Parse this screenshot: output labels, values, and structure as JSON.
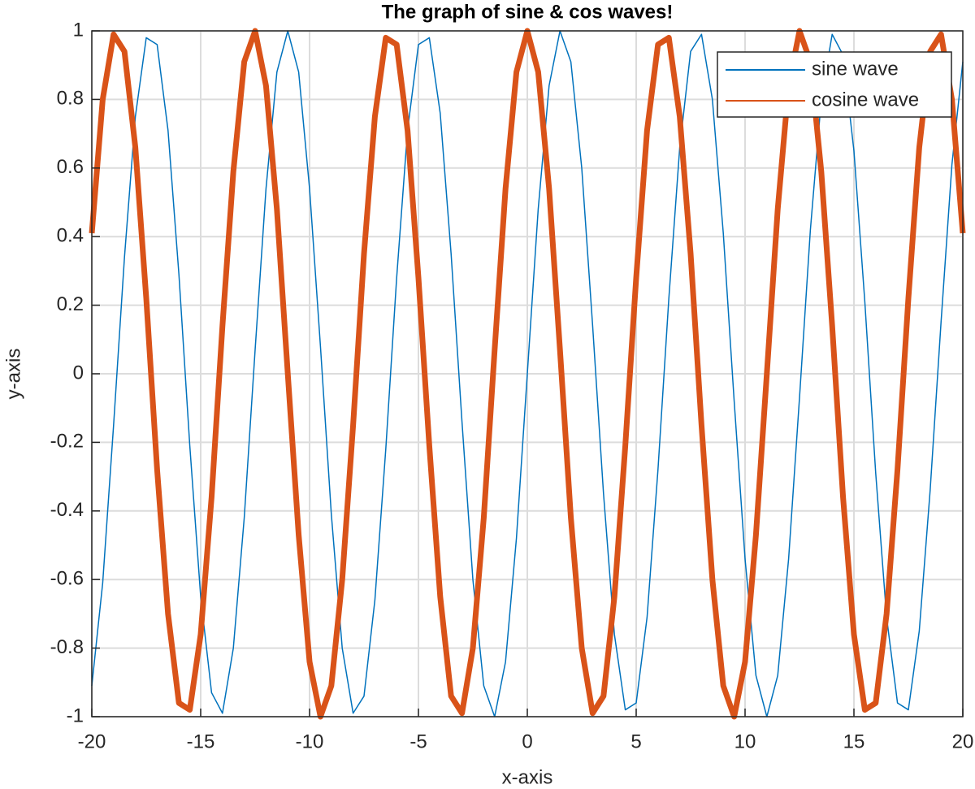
{
  "chart_data": {
    "type": "line",
    "title": "The graph of sine & cos waves!",
    "x_label": "x-axis",
    "y_label": "y-axis",
    "x": [
      -20,
      -19.5,
      -19,
      -18.5,
      -18,
      -17.5,
      -17,
      -16.5,
      -16,
      -15.5,
      -15,
      -14.5,
      -14,
      -13.5,
      -13,
      -12.5,
      -12,
      -11.5,
      -11,
      -10.5,
      -10,
      -9.5,
      -9,
      -8.5,
      -8,
      -7.5,
      -7,
      -6.5,
      -6,
      -5.5,
      -5,
      -4.5,
      -4,
      -3.5,
      -3,
      -2.5,
      -2,
      -1.5,
      -1,
      -0.5,
      0,
      0.5,
      1,
      1.5,
      2,
      2.5,
      3,
      3.5,
      4,
      4.5,
      5,
      5.5,
      6,
      6.5,
      7,
      7.5,
      8,
      8.5,
      9,
      9.5,
      10,
      10.5,
      11,
      11.5,
      12,
      12.5,
      13,
      13.5,
      14,
      14.5,
      15,
      15.5,
      16,
      16.5,
      17,
      17.5,
      18,
      18.5,
      19,
      19.5,
      20
    ],
    "series": [
      {
        "name": "sine wave",
        "color": "#0072bd",
        "width": 1.5,
        "values": [
          -0.91,
          -0.61,
          -0.15,
          0.34,
          0.75,
          0.98,
          0.96,
          0.71,
          0.29,
          -0.21,
          -0.65,
          -0.93,
          -0.99,
          -0.8,
          -0.42,
          0.07,
          0.54,
          0.88,
          1,
          0.88,
          0.54,
          0.08,
          -0.41,
          -0.8,
          -0.99,
          -0.94,
          -0.66,
          -0.22,
          0.28,
          0.71,
          0.96,
          0.98,
          0.76,
          0.35,
          -0.14,
          -0.6,
          -0.91,
          -1,
          -0.84,
          -0.48,
          0,
          0.48,
          0.84,
          1,
          0.91,
          0.6,
          0.14,
          -0.35,
          -0.76,
          -0.98,
          -0.96,
          -0.71,
          -0.28,
          0.22,
          0.66,
          0.94,
          0.99,
          0.8,
          0.41,
          -0.08,
          -0.54,
          -0.88,
          -1,
          -0.88,
          -0.54,
          -0.07,
          0.42,
          0.8,
          0.99,
          0.93,
          0.65,
          0.21,
          -0.29,
          -0.71,
          -0.96,
          -0.98,
          -0.75,
          -0.34,
          0.15,
          0.61,
          0.91
        ]
      },
      {
        "name": "cosine wave",
        "color": "#d95319",
        "width": 7,
        "values": [
          0.41,
          0.8,
          0.99,
          0.94,
          0.66,
          0.22,
          -0.28,
          -0.7,
          -0.96,
          -0.98,
          -0.76,
          -0.36,
          0.14,
          0.59,
          0.91,
          1,
          0.84,
          0.48,
          0,
          -0.47,
          -0.84,
          -1,
          -0.91,
          -0.6,
          -0.15,
          0.35,
          0.75,
          0.98,
          0.96,
          0.71,
          0.28,
          -0.21,
          -0.65,
          -0.94,
          -0.99,
          -0.8,
          -0.42,
          0.07,
          0.54,
          0.88,
          1,
          0.88,
          0.54,
          0.07,
          -0.42,
          -0.8,
          -0.99,
          -0.94,
          -0.65,
          -0.21,
          0.28,
          0.71,
          0.96,
          0.98,
          0.75,
          0.35,
          -0.15,
          -0.6,
          -0.91,
          -1,
          -0.84,
          -0.47,
          0,
          0.48,
          0.84,
          1,
          0.91,
          0.59,
          0.14,
          -0.36,
          -0.76,
          -0.98,
          -0.96,
          -0.7,
          -0.28,
          0.22,
          0.66,
          0.94,
          0.99,
          0.8,
          0.41
        ]
      }
    ],
    "xlim": [
      -20,
      20
    ],
    "xticks": [
      -20,
      -15,
      -10,
      -5,
      0,
      5,
      10,
      15,
      20
    ],
    "ylim": [
      -1,
      1
    ],
    "yticks": [
      -1,
      -0.8,
      -0.6,
      -0.4,
      -0.2,
      0,
      0.2,
      0.4,
      0.6,
      0.8,
      1
    ],
    "grid": true,
    "legend": "northeast"
  }
}
